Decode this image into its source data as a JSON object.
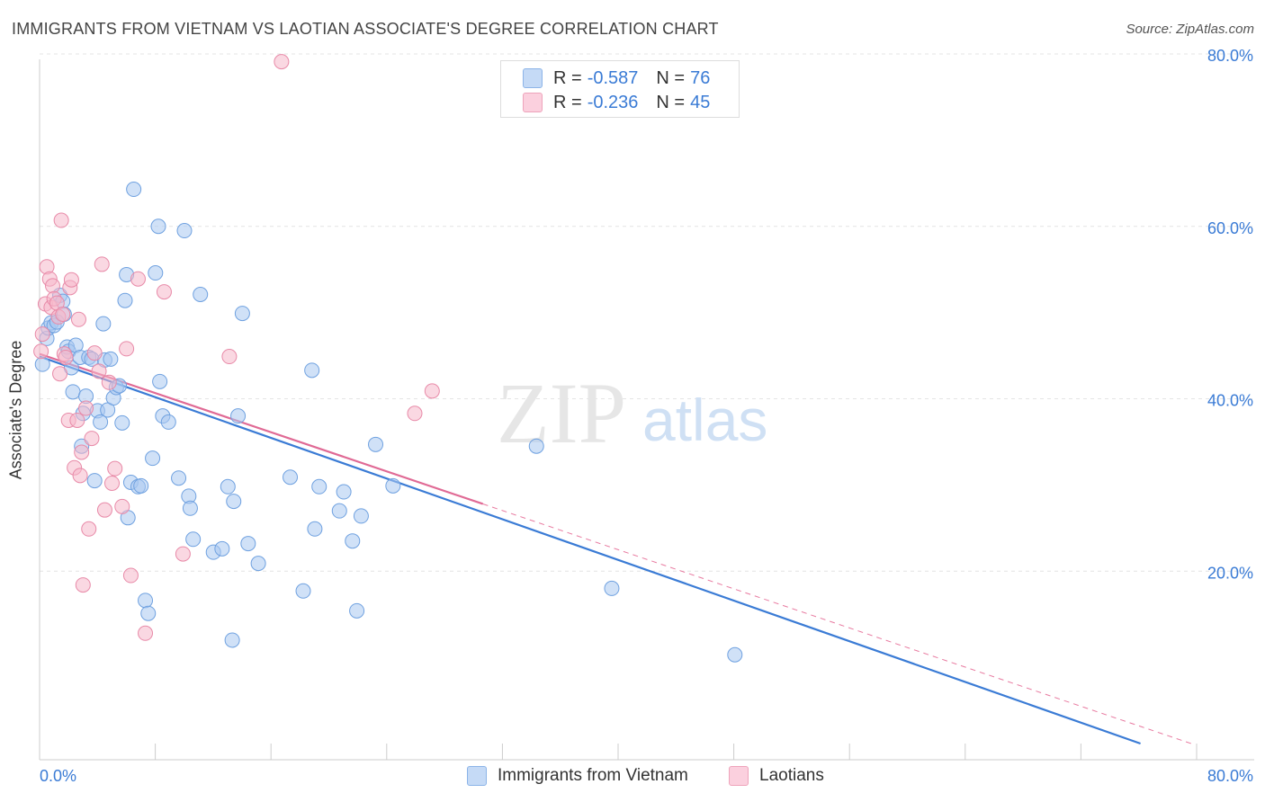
{
  "header": {
    "title": "IMMIGRANTS FROM VIETNAM VS LAOTIAN ASSOCIATE'S DEGREE CORRELATION CHART",
    "source": "Source: ZipAtlas.com"
  },
  "legend": {
    "rows": [
      {
        "r_label": "R =",
        "r_value": "-0.587",
        "n_label": "N =",
        "n_value": "76",
        "color": "#a9c8f0"
      },
      {
        "r_label": "R =",
        "r_value": "-0.236",
        "n_label": "N =",
        "n_value": "45",
        "color": "#f6b8cb"
      }
    ]
  },
  "bottom_legend": [
    "Immigrants from Vietnam",
    "Laotians"
  ],
  "watermark": {
    "zip": "ZIP",
    "atlas": "atlas"
  },
  "chart_data": {
    "type": "scatter",
    "title": "IMMIGRANTS FROM VIETNAM VS LAOTIAN ASSOCIATE'S DEGREE CORRELATION CHART",
    "xlabel": "",
    "ylabel": "Associate's Degree",
    "xlim": [
      0,
      80
    ],
    "ylim": [
      0,
      80
    ],
    "x_tick_labels": [
      "0.0%",
      "80.0%"
    ],
    "y_tick_labels": [
      "20.0%",
      "40.0%",
      "60.0%",
      "80.0%"
    ],
    "y_ticks": [
      20,
      40,
      60,
      80
    ],
    "grid": true,
    "series": [
      {
        "name": "Immigrants from Vietnam",
        "color": "#a9c8f0",
        "stroke": "#6fa1e0",
        "points": [
          [
            0.2,
            44.0
          ],
          [
            0.5,
            47.0
          ],
          [
            0.6,
            48.2
          ],
          [
            0.8,
            48.8
          ],
          [
            1.0,
            48.5
          ],
          [
            1.2,
            48.9
          ],
          [
            1.4,
            52.0
          ],
          [
            1.6,
            51.3
          ],
          [
            1.7,
            49.8
          ],
          [
            1.9,
            46.0
          ],
          [
            2.0,
            45.5
          ],
          [
            2.2,
            43.6
          ],
          [
            2.3,
            40.8
          ],
          [
            2.5,
            46.2
          ],
          [
            2.8,
            44.8
          ],
          [
            2.9,
            34.5
          ],
          [
            3.0,
            38.3
          ],
          [
            3.2,
            40.3
          ],
          [
            3.4,
            44.8
          ],
          [
            3.6,
            44.6
          ],
          [
            3.8,
            30.5
          ],
          [
            4.0,
            38.6
          ],
          [
            4.2,
            37.3
          ],
          [
            4.4,
            48.7
          ],
          [
            4.5,
            44.5
          ],
          [
            4.7,
            38.7
          ],
          [
            4.9,
            44.6
          ],
          [
            5.1,
            40.1
          ],
          [
            5.3,
            41.3
          ],
          [
            5.5,
            41.5
          ],
          [
            5.7,
            37.2
          ],
          [
            5.9,
            51.4
          ],
          [
            6.0,
            54.4
          ],
          [
            6.1,
            26.2
          ],
          [
            6.3,
            30.3
          ],
          [
            6.5,
            64.3
          ],
          [
            6.8,
            29.8
          ],
          [
            7.0,
            29.9
          ],
          [
            7.3,
            16.6
          ],
          [
            7.5,
            15.1
          ],
          [
            7.8,
            33.1
          ],
          [
            8.0,
            54.6
          ],
          [
            8.2,
            60.0
          ],
          [
            8.3,
            42.0
          ],
          [
            8.5,
            38.0
          ],
          [
            8.9,
            37.3
          ],
          [
            9.6,
            30.8
          ],
          [
            10.0,
            59.5
          ],
          [
            10.3,
            28.7
          ],
          [
            10.4,
            27.3
          ],
          [
            10.6,
            23.7
          ],
          [
            11.1,
            52.1
          ],
          [
            12.0,
            22.2
          ],
          [
            12.6,
            22.6
          ],
          [
            13.0,
            29.8
          ],
          [
            13.3,
            12.0
          ],
          [
            13.4,
            28.1
          ],
          [
            13.7,
            38.0
          ],
          [
            14.0,
            49.9
          ],
          [
            14.4,
            23.2
          ],
          [
            15.1,
            20.9
          ],
          [
            17.3,
            30.9
          ],
          [
            18.2,
            17.7
          ],
          [
            18.8,
            43.3
          ],
          [
            19.0,
            24.9
          ],
          [
            19.3,
            29.8
          ],
          [
            20.7,
            27.0
          ],
          [
            21.0,
            29.2
          ],
          [
            21.6,
            23.5
          ],
          [
            21.9,
            15.4
          ],
          [
            22.2,
            26.4
          ],
          [
            23.2,
            34.7
          ],
          [
            24.4,
            29.9
          ],
          [
            34.3,
            34.5
          ],
          [
            39.5,
            18.0
          ],
          [
            48.0,
            10.3
          ]
        ],
        "trend": {
          "x": [
            0,
            76
          ],
          "y": [
            44.9,
            0.0
          ]
        }
      },
      {
        "name": "Laotians",
        "color": "#f6b8cb",
        "stroke": "#e88aa8",
        "points": [
          [
            0.1,
            45.5
          ],
          [
            0.2,
            47.5
          ],
          [
            0.4,
            51.0
          ],
          [
            0.5,
            55.3
          ],
          [
            0.7,
            53.9
          ],
          [
            0.8,
            50.6
          ],
          [
            0.9,
            53.1
          ],
          [
            1.0,
            51.6
          ],
          [
            1.2,
            51.1
          ],
          [
            1.3,
            49.5
          ],
          [
            1.4,
            42.9
          ],
          [
            1.5,
            60.7
          ],
          [
            1.7,
            45.2
          ],
          [
            1.8,
            44.8
          ],
          [
            2.0,
            37.5
          ],
          [
            2.1,
            52.9
          ],
          [
            2.2,
            53.8
          ],
          [
            2.4,
            32.0
          ],
          [
            2.6,
            37.5
          ],
          [
            2.7,
            49.2
          ],
          [
            2.8,
            31.1
          ],
          [
            2.9,
            33.8
          ],
          [
            3.0,
            18.4
          ],
          [
            3.2,
            38.9
          ],
          [
            3.4,
            24.9
          ],
          [
            3.6,
            35.4
          ],
          [
            3.8,
            45.3
          ],
          [
            4.1,
            43.2
          ],
          [
            4.3,
            55.6
          ],
          [
            4.5,
            27.1
          ],
          [
            4.8,
            41.9
          ],
          [
            5.0,
            30.2
          ],
          [
            5.2,
            31.9
          ],
          [
            5.7,
            27.5
          ],
          [
            6.0,
            45.8
          ],
          [
            6.3,
            19.5
          ],
          [
            6.8,
            53.9
          ],
          [
            7.3,
            12.8
          ],
          [
            8.6,
            52.4
          ],
          [
            9.9,
            22.0
          ],
          [
            13.1,
            44.9
          ],
          [
            16.7,
            79.1
          ],
          [
            25.9,
            38.3
          ],
          [
            27.1,
            40.9
          ],
          [
            1.6,
            49.8
          ]
        ],
        "trend": {
          "x": [
            0,
            30.6
          ],
          "y": [
            45.2,
            27.8
          ]
        },
        "trend_extension": {
          "x": [
            30.6,
            79.5
          ],
          "y": [
            27.8,
            0.0
          ]
        }
      }
    ]
  }
}
